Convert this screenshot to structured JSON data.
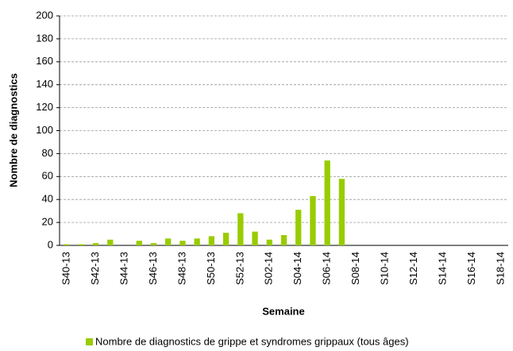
{
  "chart_data": {
    "type": "bar",
    "x_label": "Semaine",
    "y_label": "Nombre de diagnostics",
    "categories": [
      "S40-13",
      null,
      "S42-13",
      null,
      "S44-13",
      null,
      "S46-13",
      null,
      "S48-13",
      null,
      "S50-13",
      null,
      "S52-13",
      null,
      "S02-14",
      null,
      "S04-14",
      null,
      "S06-14",
      null,
      "S08-14",
      null,
      "S10-14",
      null,
      "S12-14",
      null,
      "S14-14",
      null,
      "S16-14",
      null,
      "S18-14"
    ],
    "series": [
      {
        "name": "Nombre de diagnostics de grippe et syndromes grippaux (tous âges)",
        "color": "#99cc00",
        "values": [
          1,
          1,
          2,
          5,
          0,
          4,
          2,
          6,
          4,
          6,
          8,
          11,
          28,
          12,
          5,
          9,
          31,
          43,
          74,
          58,
          null,
          null,
          null,
          null,
          null,
          null,
          null,
          null,
          null,
          null,
          null
        ]
      }
    ],
    "ylim": [
      0,
      200
    ],
    "yticks": [
      0,
      20,
      40,
      60,
      80,
      100,
      120,
      140,
      160,
      180,
      200
    ],
    "grid": true,
    "legend": "bottom"
  }
}
